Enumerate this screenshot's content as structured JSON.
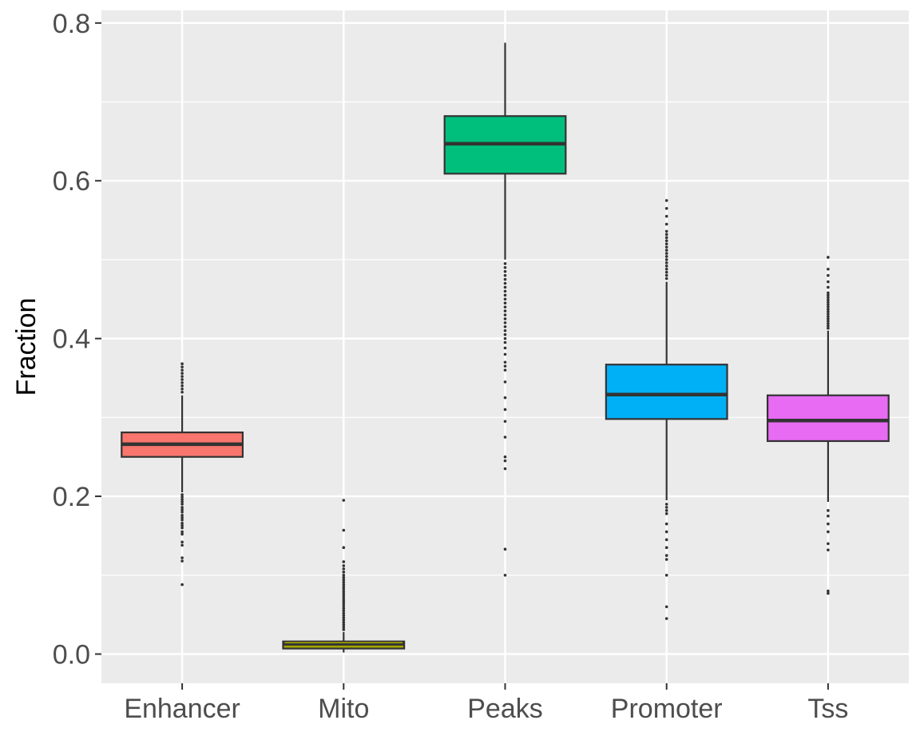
{
  "chart_data": {
    "type": "box",
    "title": "",
    "xlabel": "",
    "ylabel": "Fraction",
    "ylim": [
      -0.037,
      0.816
    ],
    "yticks": [
      0.0,
      0.2,
      0.4,
      0.6,
      0.8
    ],
    "ytick_labels": [
      "0.0",
      "0.2",
      "0.4",
      "0.6",
      "0.8"
    ],
    "grid": true,
    "legend": "none",
    "categories": [
      "Enhancer",
      "Mito",
      "Peaks",
      "Promoter",
      "Tss"
    ],
    "boxes": [
      {
        "category": "Enhancer",
        "color": "#F8766D",
        "whisker_low": 0.205,
        "q1": 0.25,
        "median": 0.266,
        "q3": 0.281,
        "whisker_high": 0.328,
        "outliers": [
          0.088,
          0.118,
          0.122,
          0.138,
          0.142,
          0.152,
          0.155,
          0.16,
          0.163,
          0.166,
          0.17,
          0.173,
          0.176,
          0.18,
          0.183,
          0.186,
          0.19,
          0.193,
          0.196,
          0.199,
          0.202,
          0.332,
          0.336,
          0.34,
          0.344,
          0.348,
          0.352,
          0.356,
          0.36,
          0.364,
          0.368
        ]
      },
      {
        "category": "Mito",
        "color": "#A3A500",
        "whisker_low": 0.002,
        "q1": 0.007,
        "median": 0.013,
        "q3": 0.016,
        "whisker_high": 0.028,
        "outliers": [
          0.031,
          0.034,
          0.037,
          0.04,
          0.043,
          0.046,
          0.049,
          0.052,
          0.055,
          0.058,
          0.061,
          0.064,
          0.067,
          0.07,
          0.073,
          0.076,
          0.079,
          0.082,
          0.085,
          0.088,
          0.091,
          0.094,
          0.097,
          0.1,
          0.104,
          0.108,
          0.112,
          0.117,
          0.135,
          0.157,
          0.195
        ]
      },
      {
        "category": "Peaks",
        "color": "#00BF7D",
        "whisker_low": 0.5,
        "q1": 0.609,
        "median": 0.647,
        "q3": 0.682,
        "whisker_high": 0.775,
        "outliers": [
          0.1,
          0.133,
          0.235,
          0.245,
          0.25,
          0.275,
          0.295,
          0.31,
          0.325,
          0.345,
          0.36,
          0.365,
          0.37,
          0.38,
          0.388,
          0.395,
          0.4,
          0.405,
          0.41,
          0.415,
          0.42,
          0.425,
          0.43,
          0.435,
          0.44,
          0.445,
          0.45,
          0.455,
          0.46,
          0.465,
          0.47,
          0.475,
          0.48,
          0.485,
          0.49,
          0.495
        ]
      },
      {
        "category": "Promoter",
        "color": "#00B0F6",
        "whisker_low": 0.195,
        "q1": 0.298,
        "median": 0.329,
        "q3": 0.367,
        "whisker_high": 0.472,
        "outliers": [
          0.045,
          0.06,
          0.1,
          0.12,
          0.125,
          0.135,
          0.145,
          0.155,
          0.165,
          0.178,
          0.182,
          0.186,
          0.19,
          0.476,
          0.48,
          0.484,
          0.488,
          0.492,
          0.496,
          0.5,
          0.504,
          0.508,
          0.512,
          0.516,
          0.52,
          0.524,
          0.528,
          0.532,
          0.536,
          0.545,
          0.555,
          0.565,
          0.575
        ]
      },
      {
        "category": "Tss",
        "color": "#E76BF3",
        "whisker_low": 0.193,
        "q1": 0.27,
        "median": 0.296,
        "q3": 0.328,
        "whisker_high": 0.41,
        "outliers": [
          0.077,
          0.08,
          0.132,
          0.14,
          0.155,
          0.165,
          0.175,
          0.182,
          0.413,
          0.416,
          0.419,
          0.422,
          0.425,
          0.428,
          0.431,
          0.434,
          0.437,
          0.44,
          0.443,
          0.446,
          0.449,
          0.452,
          0.455,
          0.458,
          0.465,
          0.472,
          0.48,
          0.488,
          0.503
        ]
      }
    ]
  }
}
